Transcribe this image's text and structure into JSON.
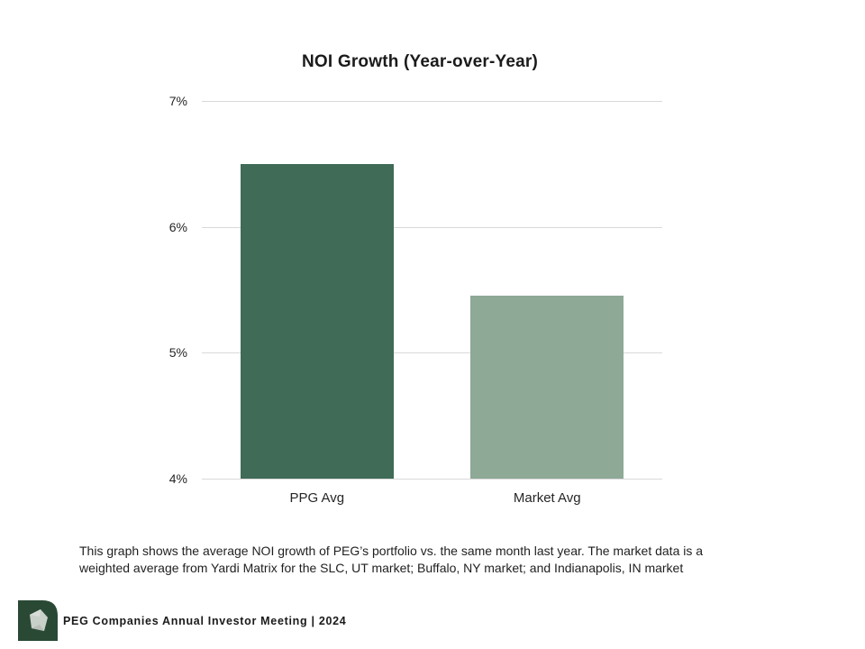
{
  "slide": {
    "caption_lines": [
      "This graph shows the average NOI growth of PEG’s portfolio vs. the same month last year. The market data is a",
      "weighted average from Yardi Matrix for the SLC, UT market; Buffalo, NY market; and Indianapolis, IN market"
    ],
    "footer_text": "PEG Companies Annual Investor Meeting | 2024",
    "logo_green": "#2a4935",
    "logo_gem_fill": "#c9cfc9"
  },
  "chart_data": {
    "type": "bar",
    "title": "NOI Growth (Year-over-Year)",
    "categories": [
      "PPG Avg",
      "Market Avg"
    ],
    "values": [
      6.5,
      5.45
    ],
    "unit": "%",
    "xlabel": "",
    "ylabel": "",
    "ylim": [
      4,
      7
    ],
    "yticks": [
      7,
      6,
      5,
      4
    ],
    "ytick_labels": [
      "7%",
      "6%",
      "5%",
      "4%"
    ],
    "grid": "horizontal-only",
    "legend": "none",
    "bar_colors": [
      "#3f6b57",
      "#8ea996"
    ],
    "gridline_color": "#d9d9d9"
  }
}
